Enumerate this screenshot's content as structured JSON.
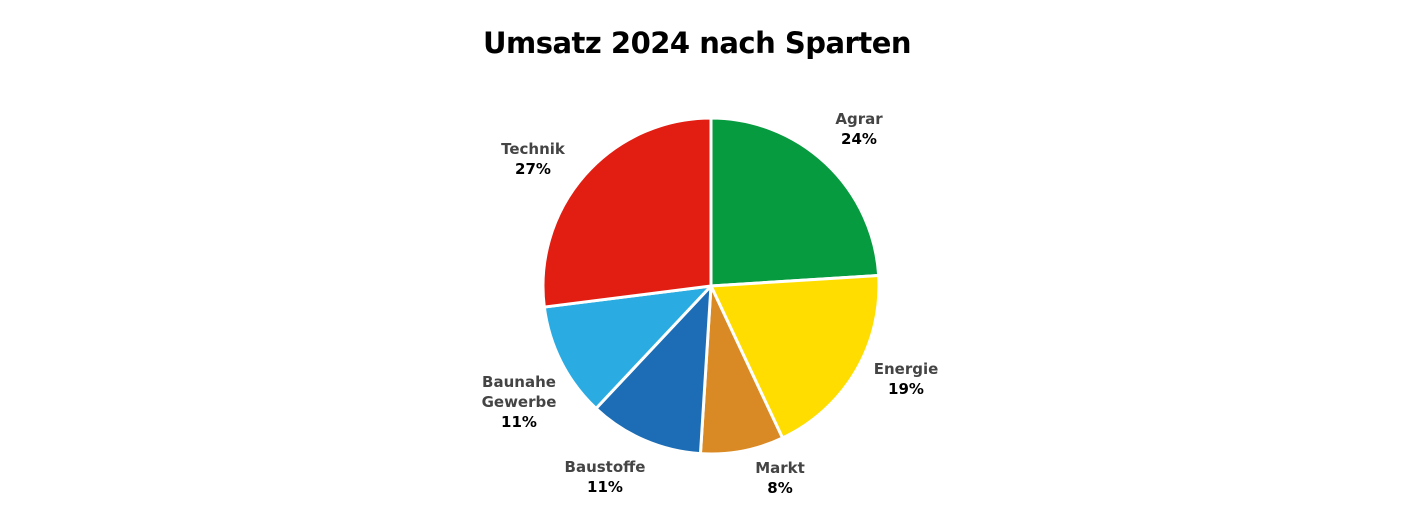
{
  "chart_data": {
    "type": "pie",
    "title": "Umsatz 2024 nach Sparten",
    "slices": [
      {
        "label": [
          "Agrar"
        ],
        "value": 24,
        "value_label": "24%",
        "color": "#079b3f"
      },
      {
        "label": [
          "Energie"
        ],
        "value": 19,
        "value_label": "19%",
        "color": "#ffdd00"
      },
      {
        "label": [
          "Markt"
        ],
        "value": 8,
        "value_label": "8%",
        "color": "#d98a24"
      },
      {
        "label": [
          "Baustoffe"
        ],
        "value": 11,
        "value_label": "11%",
        "color": "#1c6db5"
      },
      {
        "label": [
          "Baunahe",
          "Gewerbe"
        ],
        "value": 11,
        "value_label": "11%",
        "color": "#2aace3"
      },
      {
        "label": [
          "Technik"
        ],
        "value": 27,
        "value_label": "27%",
        "color": "#e21d11"
      }
    ],
    "start": "12 o'clock",
    "direction": "clockwise",
    "legend": "none",
    "slice_border_color": "#ffffff"
  }
}
